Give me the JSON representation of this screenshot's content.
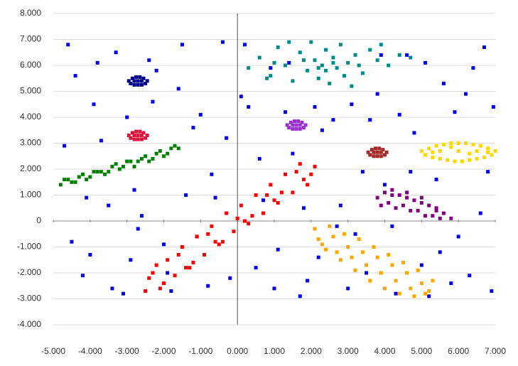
{
  "chart_data": {
    "type": "scatter",
    "xlim": [
      -5,
      7
    ],
    "ylim": [
      -4,
      8
    ],
    "xticks": [
      {
        "value": -5,
        "label": "-5.000"
      },
      {
        "value": -4,
        "label": "-4.000"
      },
      {
        "value": -3,
        "label": "-3.000"
      },
      {
        "value": -2,
        "label": "-2.000"
      },
      {
        "value": -1,
        "label": "-1.000"
      },
      {
        "value": 0,
        "label": "0.000"
      },
      {
        "value": 1,
        "label": "1.000"
      },
      {
        "value": 2,
        "label": "2.000"
      },
      {
        "value": 3,
        "label": "3.000"
      },
      {
        "value": 4,
        "label": "4.000"
      },
      {
        "value": 5,
        "label": "5.000"
      },
      {
        "value": 6,
        "label": "6.000"
      },
      {
        "value": 7,
        "label": "7.000"
      }
    ],
    "yticks": [
      {
        "value": -4,
        "label": "-4.000"
      },
      {
        "value": -3,
        "label": "-3.000"
      },
      {
        "value": -2,
        "label": "-2.000"
      },
      {
        "value": -1,
        "label": "-1.000"
      },
      0,
      {
        "value": 1,
        "label": "1.000"
      },
      {
        "value": 2,
        "label": "2.000"
      },
      {
        "value": 3,
        "label": "3.000"
      },
      {
        "value": 4,
        "label": "4.000"
      },
      {
        "value": 5,
        "label": "5.000"
      },
      {
        "value": 6,
        "label": "6.000"
      },
      {
        "value": 7,
        "label": "7.000"
      },
      {
        "value": 8,
        "label": "8.000"
      }
    ],
    "grid": true,
    "series": [
      {
        "color": "#0000ee",
        "x": [
          -4.6,
          -4.2,
          -3.9,
          -3.5,
          -3.1,
          -2.8,
          -2.4,
          -2.0,
          -1.6,
          -1.2,
          -0.8,
          -0.4,
          0.1,
          0.5,
          0.9,
          1.3,
          1.7,
          2.1,
          2.6,
          3.0,
          3.4,
          3.8,
          4.2,
          4.6,
          5.0,
          5.4,
          5.8,
          6.2,
          6.6,
          6.9,
          -4.7,
          -4.4,
          -4.0,
          -3.7,
          -3.3,
          -2.9,
          -2.6,
          -2.2,
          -1.8,
          -1.4,
          -1.0,
          -0.6,
          -0.2,
          0.3,
          0.7,
          1.1,
          1.5,
          1.9,
          2.3,
          2.8,
          3.2,
          3.6,
          4.0,
          4.4,
          4.8,
          5.2,
          5.6,
          6.0,
          6.4,
          6.8,
          -4.5,
          -4.1,
          -3.8,
          -3.4,
          -3.0,
          -2.7,
          -2.3,
          -1.9,
          -1.5,
          -1.1,
          -0.7,
          -0.3,
          0.2,
          0.6,
          1.0,
          1.4,
          1.8,
          2.2,
          2.7,
          3.1,
          3.5,
          3.9,
          4.3,
          4.7,
          5.1,
          5.5,
          5.9,
          6.3,
          6.7,
          6.95
        ],
        "y": [
          6.8,
          -2.1,
          4.5,
          0.6,
          -2.8,
          1.2,
          6.2,
          -0.9,
          5.1,
          3.6,
          -2.5,
          6.9,
          4.8,
          -1.8,
          5.9,
          4.2,
          -2.9,
          4.4,
          3.9,
          -2.6,
          1.9,
          4.9,
          -0.2,
          6.4,
          -1.7,
          1.6,
          -2.4,
          4.9,
          0.3,
          -2.7,
          2.9,
          5.6,
          -1.3,
          3.1,
          6.5,
          -1.5,
          0.2,
          5.8,
          -2.7,
          1.0,
          4.1,
          0.9,
          -2.2,
          4.4,
          0.8,
          -1.1,
          2.6,
          -2.3,
          3.5,
          0.6,
          -0.5,
          3.9,
          1.4,
          4.1,
          3.4,
          -2.9,
          5.3,
          -0.6,
          5.9,
          1.9,
          -0.8,
          0.9,
          6.1,
          -2.6,
          4.0,
          -0.3,
          4.6,
          -2.0,
          6.8,
          -0.6,
          1.8,
          3.2,
          6.8,
          2.4,
          -2.6,
          6.1,
          0.5,
          -1.4,
          -0.2,
          4.5,
          -2.0,
          6.4,
          -2.8,
          1.9,
          6.1,
          -1.2,
          4.2,
          -2.1,
          6.7,
          4.4
        ]
      },
      {
        "color": "#008b8b",
        "x": [
          0.3,
          0.6,
          0.9,
          1.1,
          1.3,
          1.5,
          1.7,
          1.9,
          2.0,
          2.1,
          2.2,
          2.3,
          2.4,
          2.5,
          2.6,
          2.7,
          2.8,
          2.9,
          3.0,
          3.2,
          3.4,
          3.6,
          3.8,
          4.1,
          4.4,
          4.7,
          1.4,
          2.2,
          2.6,
          3.1,
          1.0,
          1.8,
          2.4,
          3.3,
          3.9,
          0.8
        ],
        "y": [
          5.9,
          6.3,
          5.6,
          6.7,
          6.0,
          5.4,
          6.5,
          5.8,
          6.9,
          6.2,
          5.5,
          6.0,
          6.6,
          5.3,
          6.3,
          5.9,
          6.8,
          5.6,
          6.1,
          6.4,
          5.7,
          6.6,
          6.2,
          6.0,
          6.4,
          6.3,
          6.9,
          5.9,
          6.1,
          5.2,
          6.1,
          6.2,
          5.8,
          6.0,
          6.8,
          5.5
        ]
      },
      {
        "color": "#00008b",
        "x": [
          -2.95,
          -2.85,
          -2.75,
          -2.65,
          -2.55,
          -2.45,
          -2.9,
          -2.8,
          -2.7,
          -2.6,
          -2.5,
          -2.8,
          -2.7,
          -2.6
        ],
        "y": [
          5.4,
          5.5,
          5.55,
          5.55,
          5.5,
          5.4,
          5.3,
          5.25,
          5.25,
          5.25,
          5.3,
          5.4,
          5.4,
          5.4
        ]
      },
      {
        "color": "#dc143c",
        "x": [
          -2.95,
          -2.85,
          -2.75,
          -2.65,
          -2.55,
          -2.45,
          -2.9,
          -2.8,
          -2.7,
          -2.6,
          -2.5,
          -2.8,
          -2.7,
          -2.6
        ],
        "y": [
          3.3,
          3.4,
          3.45,
          3.45,
          3.4,
          3.3,
          3.2,
          3.15,
          3.15,
          3.15,
          3.2,
          3.3,
          3.3,
          3.3
        ]
      },
      {
        "color": "#9932cc",
        "x": [
          1.35,
          1.45,
          1.55,
          1.65,
          1.75,
          1.85,
          1.4,
          1.5,
          1.6,
          1.7,
          1.8,
          1.5,
          1.6,
          1.7
        ],
        "y": [
          3.7,
          3.8,
          3.85,
          3.85,
          3.8,
          3.7,
          3.6,
          3.55,
          3.55,
          3.55,
          3.6,
          3.7,
          3.7,
          3.7
        ]
      },
      {
        "color": "#a52a2a",
        "x": [
          3.55,
          3.65,
          3.75,
          3.85,
          3.95,
          4.05,
          3.6,
          3.7,
          3.8,
          3.9,
          4.0,
          3.7,
          3.8,
          3.9
        ],
        "y": [
          2.65,
          2.75,
          2.8,
          2.8,
          2.75,
          2.65,
          2.55,
          2.5,
          2.5,
          2.5,
          2.55,
          2.65,
          2.65,
          2.65
        ]
      },
      {
        "color": "#ffd700",
        "x": [
          5.0,
          5.2,
          5.4,
          5.6,
          5.8,
          6.0,
          6.2,
          6.4,
          6.6,
          6.8,
          7.0,
          5.1,
          5.3,
          5.5,
          5.7,
          5.9,
          6.1,
          6.3,
          6.5,
          6.7,
          6.9,
          5.5,
          6.0,
          6.5,
          5.3,
          5.8,
          6.3,
          6.8
        ],
        "y": [
          2.7,
          2.8,
          2.9,
          2.95,
          3.0,
          3.0,
          3.0,
          2.95,
          2.9,
          2.8,
          2.7,
          2.55,
          2.45,
          2.4,
          2.35,
          2.3,
          2.3,
          2.35,
          2.4,
          2.45,
          2.55,
          2.7,
          2.7,
          2.7,
          2.65,
          2.85,
          2.6,
          2.65
        ]
      },
      {
        "color": "#008000",
        "x": [
          -4.8,
          -4.6,
          -4.4,
          -4.2,
          -4.0,
          -3.8,
          -3.6,
          -3.4,
          -3.2,
          -3.0,
          -2.8,
          -2.6,
          -2.4,
          -2.2,
          -2.0,
          -1.8,
          -1.6,
          -4.7,
          -4.5,
          -4.3,
          -4.1,
          -3.9,
          -3.7,
          -3.5,
          -3.3,
          -3.1,
          -2.9,
          -2.7,
          -2.5,
          -2.3,
          -2.1,
          -1.9,
          -1.7
        ],
        "y": [
          1.4,
          1.6,
          1.5,
          1.8,
          1.7,
          1.9,
          1.8,
          2.1,
          2.0,
          2.3,
          2.1,
          2.4,
          2.3,
          2.6,
          2.5,
          2.8,
          2.8,
          1.6,
          1.5,
          1.7,
          1.6,
          1.9,
          1.9,
          1.9,
          2.2,
          2.1,
          2.3,
          2.3,
          2.5,
          2.4,
          2.7,
          2.6,
          2.9
        ]
      },
      {
        "color": "#ff0000",
        "x": [
          -2.5,
          -2.3,
          -2.1,
          -1.9,
          -1.7,
          -1.5,
          -1.3,
          -1.1,
          -0.9,
          -0.7,
          -0.5,
          -0.3,
          -0.1,
          0.1,
          0.3,
          0.5,
          0.7,
          0.9,
          1.1,
          1.3,
          1.5,
          1.7,
          1.9,
          2.1,
          -2.4,
          -2.0,
          -1.6,
          -1.2,
          -0.8,
          -0.4,
          0.0,
          0.4,
          0.8,
          1.2,
          1.6,
          2.0,
          -2.2,
          -1.4,
          -0.6,
          0.2,
          1.0,
          1.8
        ],
        "y": [
          -2.7,
          -2.0,
          -2.6,
          -1.5,
          -2.1,
          -1.0,
          -1.8,
          -0.6,
          -1.3,
          -0.2,
          -0.9,
          0.3,
          -0.4,
          0.6,
          -0.1,
          1.0,
          0.3,
          1.4,
          0.7,
          1.8,
          1.1,
          2.2,
          1.4,
          2.1,
          -2.2,
          -2.4,
          -1.3,
          -1.6,
          -0.5,
          -0.8,
          0.1,
          0.2,
          1.0,
          1.1,
          1.9,
          1.8,
          -1.7,
          -1.8,
          -0.8,
          0.0,
          0.8,
          1.6
        ]
      },
      {
        "color": "#800080",
        "x": [
          3.8,
          4.0,
          4.2,
          4.4,
          4.6,
          4.8,
          5.0,
          5.2,
          5.4,
          5.6,
          5.8,
          3.9,
          4.1,
          4.3,
          4.5,
          4.7,
          4.9,
          5.1,
          5.3,
          5.5,
          4.2,
          4.6,
          5.0,
          5.4
        ],
        "y": [
          0.9,
          1.1,
          1.0,
          1.0,
          0.9,
          0.8,
          0.7,
          0.6,
          0.4,
          0.3,
          0.1,
          0.6,
          0.7,
          0.5,
          0.6,
          0.4,
          0.4,
          0.2,
          0.2,
          0.1,
          1.2,
          1.1,
          0.9,
          0.5
        ]
      },
      {
        "color": "#ffa500",
        "x": [
          2.1,
          2.3,
          2.5,
          2.7,
          2.9,
          3.1,
          3.3,
          3.5,
          3.7,
          3.9,
          4.1,
          4.3,
          4.5,
          4.7,
          4.9,
          5.1,
          5.3,
          2.2,
          2.6,
          3.0,
          3.4,
          3.8,
          4.2,
          4.6,
          5.0,
          2.4,
          2.8,
          3.2,
          3.6,
          4.0,
          4.4,
          4.8,
          5.2
        ],
        "y": [
          -0.3,
          -0.9,
          -0.2,
          -1.2,
          -0.5,
          -1.4,
          -0.7,
          -1.7,
          -1.0,
          -2.0,
          -1.3,
          -2.3,
          -1.6,
          -2.6,
          -1.9,
          -2.8,
          -2.3,
          -0.7,
          -0.6,
          -1.0,
          -1.2,
          -1.4,
          -1.7,
          -2.0,
          -2.4,
          -1.1,
          -1.5,
          -1.9,
          -2.3,
          -2.6,
          -2.8,
          -2.9,
          -2.7
        ]
      }
    ]
  }
}
